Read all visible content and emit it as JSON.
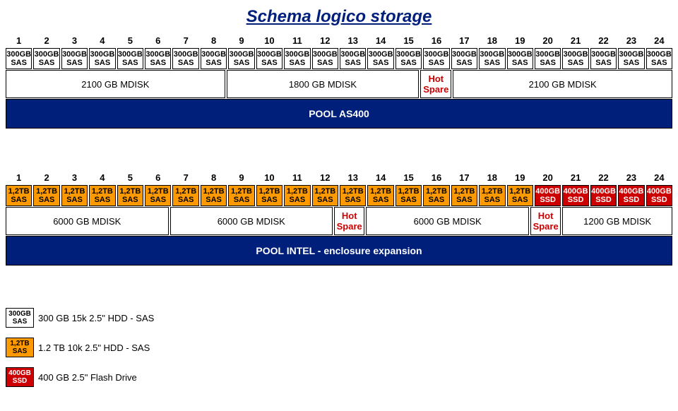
{
  "title": "Schema logico storage",
  "title_color": "#001f7a",
  "colors": {
    "sas300_bg": "#ffffff",
    "sas300_text": "#000000",
    "sas12_bg": "#ff9900",
    "sas12_text": "#000000",
    "ssd400_bg": "#cc0000",
    "ssd400_text": "#ffffff",
    "hot_bg": "#ffffff",
    "hot_text": "#cc0000",
    "pool_bg": "#001f7a",
    "pool_text": "#ffffff",
    "mdisk_bg": "#ffffff",
    "mdisk_text": "#000000"
  },
  "section1": {
    "count": 24,
    "numbers": [
      "1",
      "2",
      "3",
      "4",
      "5",
      "6",
      "7",
      "8",
      "9",
      "10",
      "11",
      "12",
      "13",
      "14",
      "15",
      "16",
      "17",
      "18",
      "19",
      "20",
      "21",
      "22",
      "23",
      "24"
    ],
    "slots": [
      {
        "l1": "300GB",
        "l2": "SAS",
        "style": "sas300"
      },
      {
        "l1": "300GB",
        "l2": "SAS",
        "style": "sas300"
      },
      {
        "l1": "300GB",
        "l2": "SAS",
        "style": "sas300"
      },
      {
        "l1": "300GB",
        "l2": "SAS",
        "style": "sas300"
      },
      {
        "l1": "300GB",
        "l2": "SAS",
        "style": "sas300"
      },
      {
        "l1": "300GB",
        "l2": "SAS",
        "style": "sas300"
      },
      {
        "l1": "300GB",
        "l2": "SAS",
        "style": "sas300"
      },
      {
        "l1": "300GB",
        "l2": "SAS",
        "style": "sas300"
      },
      {
        "l1": "300GB",
        "l2": "SAS",
        "style": "sas300"
      },
      {
        "l1": "300GB",
        "l2": "SAS",
        "style": "sas300"
      },
      {
        "l1": "300GB",
        "l2": "SAS",
        "style": "sas300"
      },
      {
        "l1": "300GB",
        "l2": "SAS",
        "style": "sas300"
      },
      {
        "l1": "300GB",
        "l2": "SAS",
        "style": "sas300"
      },
      {
        "l1": "300GB",
        "l2": "SAS",
        "style": "sas300"
      },
      {
        "l1": "300GB",
        "l2": "SAS",
        "style": "sas300"
      },
      {
        "l1": "300GB",
        "l2": "SAS",
        "style": "sas300"
      },
      {
        "l1": "300GB",
        "l2": "SAS",
        "style": "sas300"
      },
      {
        "l1": "300GB",
        "l2": "SAS",
        "style": "sas300"
      },
      {
        "l1": "300GB",
        "l2": "SAS",
        "style": "sas300"
      },
      {
        "l1": "300GB",
        "l2": "SAS",
        "style": "sas300"
      },
      {
        "l1": "300GB",
        "l2": "SAS",
        "style": "sas300"
      },
      {
        "l1": "300GB",
        "l2": "SAS",
        "style": "sas300"
      },
      {
        "l1": "300GB",
        "l2": "SAS",
        "style": "sas300"
      },
      {
        "l1": "300GB",
        "l2": "SAS",
        "style": "sas300"
      }
    ],
    "groups": [
      {
        "span": 8,
        "l1": "2100 GB MDISK",
        "style": "mdisk"
      },
      {
        "span": 7,
        "l1": "1800 GB MDISK",
        "style": "mdisk"
      },
      {
        "span": 1,
        "l1": "Hot",
        "l2": "Spare",
        "style": "hot"
      },
      {
        "span": 8,
        "l1": "2100 GB MDISK",
        "style": "mdisk"
      }
    ],
    "pool": {
      "label": "POOL AS400",
      "style": "pool"
    }
  },
  "section2": {
    "count": 24,
    "numbers": [
      "1",
      "2",
      "3",
      "4",
      "5",
      "6",
      "7",
      "8",
      "9",
      "10",
      "11",
      "12",
      "13",
      "14",
      "15",
      "16",
      "17",
      "18",
      "19",
      "20",
      "21",
      "22",
      "23",
      "24"
    ],
    "slots": [
      {
        "l1": "1,2TB",
        "l2": "SAS",
        "style": "sas12"
      },
      {
        "l1": "1,2TB",
        "l2": "SAS",
        "style": "sas12"
      },
      {
        "l1": "1,2TB",
        "l2": "SAS",
        "style": "sas12"
      },
      {
        "l1": "1,2TB",
        "l2": "SAS",
        "style": "sas12"
      },
      {
        "l1": "1,2TB",
        "l2": "SAS",
        "style": "sas12"
      },
      {
        "l1": "1,2TB",
        "l2": "SAS",
        "style": "sas12"
      },
      {
        "l1": "1,2TB",
        "l2": "SAS",
        "style": "sas12"
      },
      {
        "l1": "1,2TB",
        "l2": "SAS",
        "style": "sas12"
      },
      {
        "l1": "1,2TB",
        "l2": "SAS",
        "style": "sas12"
      },
      {
        "l1": "1,2TB",
        "l2": "SAS",
        "style": "sas12"
      },
      {
        "l1": "1,2TB",
        "l2": "SAS",
        "style": "sas12"
      },
      {
        "l1": "1,2TB",
        "l2": "SAS",
        "style": "sas12"
      },
      {
        "l1": "1,2TB",
        "l2": "SAS",
        "style": "sas12"
      },
      {
        "l1": "1,2TB",
        "l2": "SAS",
        "style": "sas12"
      },
      {
        "l1": "1,2TB",
        "l2": "SAS",
        "style": "sas12"
      },
      {
        "l1": "1,2TB",
        "l2": "SAS",
        "style": "sas12"
      },
      {
        "l1": "1,2TB",
        "l2": "SAS",
        "style": "sas12"
      },
      {
        "l1": "1,2TB",
        "l2": "SAS",
        "style": "sas12"
      },
      {
        "l1": "1,2TB",
        "l2": "SAS",
        "style": "sas12"
      },
      {
        "l1": "400GB",
        "l2": "SSD",
        "style": "ssd400"
      },
      {
        "l1": "400GB",
        "l2": "SSD",
        "style": "ssd400"
      },
      {
        "l1": "400GB",
        "l2": "SSD",
        "style": "ssd400"
      },
      {
        "l1": "400GB",
        "l2": "SSD",
        "style": "ssd400"
      },
      {
        "l1": "400GB",
        "l2": "SSD",
        "style": "ssd400"
      }
    ],
    "groups": [
      {
        "span": 6,
        "l1": "6000 GB MDISK",
        "style": "mdisk"
      },
      {
        "span": 6,
        "l1": "6000 GB MDISK",
        "style": "mdisk"
      },
      {
        "span": 1,
        "l1": "Hot",
        "l2": "Spare",
        "style": "hot"
      },
      {
        "span": 6,
        "l1": "6000 GB MDISK",
        "style": "mdisk"
      },
      {
        "span": 1,
        "l1": "Hot",
        "l2": "Spare",
        "style": "hot"
      },
      {
        "span": 4,
        "l1": "1200 GB MDISK",
        "style": "mdisk"
      }
    ],
    "pool": {
      "label": "POOL INTEL - enclosure expansion",
      "style": "pool"
    }
  },
  "legend": [
    {
      "l1": "300GB",
      "l2": "SAS",
      "style": "sas300",
      "text": "300 GB 15k 2.5\" HDD - SAS"
    },
    {
      "l1": "1,2TB",
      "l2": "SAS",
      "style": "sas12",
      "text": "1.2 TB 10k 2.5\" HDD - SAS"
    },
    {
      "l1": "400GB",
      "l2": "SSD",
      "style": "ssd400",
      "text": "400 GB 2.5\" Flash Drive"
    }
  ]
}
